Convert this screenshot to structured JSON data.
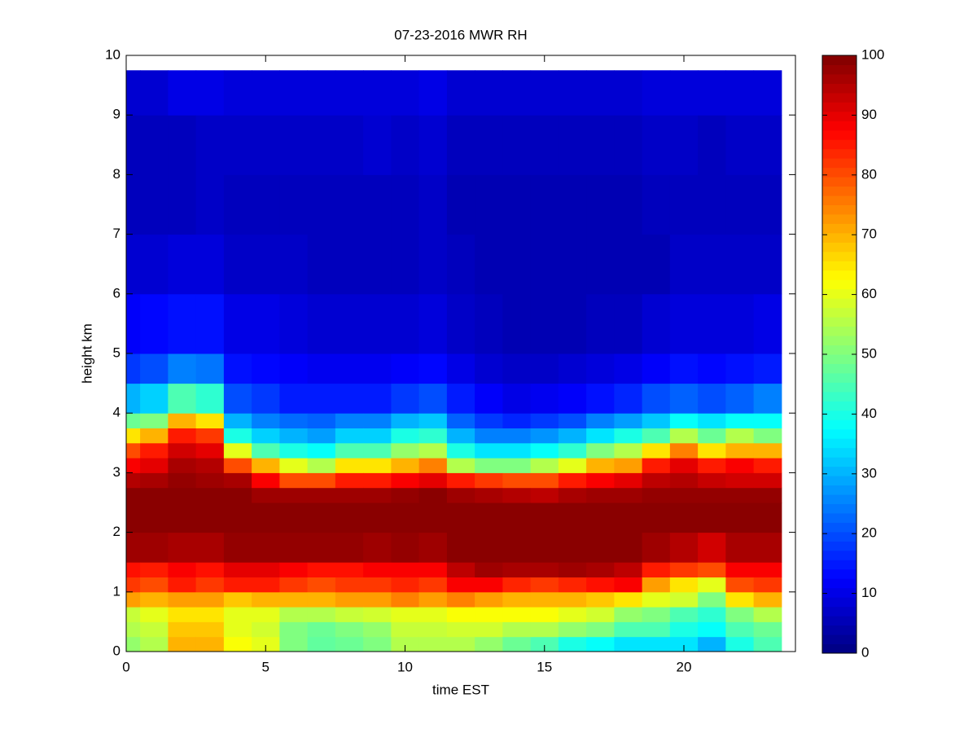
{
  "chart_data": {
    "type": "heatmap",
    "title": "07-23-2016 MWR RH",
    "xlabel": "time EST",
    "ylabel": "height km",
    "xlim": [
      0,
      24
    ],
    "xticks": [
      0,
      5,
      10,
      15,
      20
    ],
    "ylim": [
      0,
      10
    ],
    "yticks": [
      0,
      1,
      2,
      3,
      4,
      5,
      6,
      7,
      8,
      9,
      10
    ],
    "colormap": "jet",
    "clim": [
      0,
      100
    ],
    "cticks": [
      0,
      10,
      20,
      30,
      40,
      50,
      60,
      70,
      80,
      90,
      100
    ],
    "x_bins": [
      0,
      0.5,
      1.5,
      2.5,
      3.5,
      4.5,
      5.5,
      6.5,
      7.5,
      8.5,
      9.5,
      10.5,
      11.5,
      12.5,
      13.5,
      14.5,
      15.5,
      16.5,
      17.5,
      18.5,
      19.5,
      20.5,
      21.5,
      22.5,
      23.5
    ],
    "y_bins": [
      0,
      0.25,
      0.5,
      0.75,
      1,
      1.25,
      1.5,
      2,
      2.5,
      2.75,
      3,
      3.25,
      3.5,
      3.75,
      4,
      4.5,
      5,
      6,
      7,
      8,
      9,
      9.75
    ],
    "z": [
      [
        52,
        55,
        57,
        72,
        82,
        86,
        97,
        99,
        99,
        95,
        88,
        80,
        65,
        48,
        30,
        18,
        12,
        8,
        6,
        6,
        8
      ],
      [
        55,
        57,
        60,
        70,
        80,
        85,
        97,
        99,
        99,
        96,
        90,
        85,
        70,
        50,
        33,
        20,
        13,
        8,
        6,
        6,
        8
      ],
      [
        70,
        68,
        65,
        72,
        85,
        88,
        96,
        99,
        99,
        98,
        96,
        92,
        85,
        70,
        45,
        25,
        14,
        9,
        6,
        6,
        10
      ],
      [
        70,
        68,
        65,
        72,
        82,
        86,
        96,
        99,
        99,
        97,
        95,
        90,
        82,
        65,
        42,
        24,
        14,
        9,
        7,
        7,
        10
      ],
      [
        62,
        60,
        60,
        68,
        85,
        90,
        98,
        99,
        99,
        96,
        80,
        60,
        40,
        30,
        20,
        14,
        10,
        7,
        6,
        7,
        9
      ],
      [
        60,
        58,
        60,
        70,
        85,
        90,
        98,
        99,
        97,
        88,
        70,
        45,
        33,
        25,
        18,
        13,
        10,
        7,
        6,
        7,
        9
      ],
      [
        50,
        50,
        55,
        70,
        82,
        88,
        98,
        99,
        97,
        80,
        60,
        40,
        30,
        23,
        15,
        12,
        9,
        7,
        6,
        7,
        9
      ],
      [
        47,
        48,
        55,
        70,
        80,
        86,
        98,
        99,
        97,
        80,
        55,
        38,
        28,
        22,
        15,
        11,
        8,
        6,
        6,
        7,
        9
      ],
      [
        48,
        50,
        57,
        72,
        82,
        86,
        98,
        99,
        97,
        85,
        65,
        45,
        33,
        25,
        15,
        11,
        8,
        6,
        6,
        7,
        9
      ],
      [
        50,
        52,
        58,
        72,
        82,
        88,
        97,
        99,
        97,
        85,
        65,
        45,
        33,
        25,
        15,
        11,
        8,
        6,
        6,
        8,
        9
      ],
      [
        55,
        57,
        60,
        75,
        84,
        88,
        98,
        99,
        98,
        88,
        70,
        52,
        40,
        30,
        18,
        12,
        8,
        6,
        6,
        7,
        9
      ],
      [
        55,
        57,
        60,
        72,
        82,
        88,
        97,
        99,
        99,
        90,
        75,
        55,
        42,
        32,
        20,
        13,
        9,
        7,
        7,
        8,
        10
      ],
      [
        55,
        58,
        62,
        75,
        88,
        94,
        99,
        99,
        97,
        85,
        55,
        40,
        30,
        22,
        15,
        10,
        7,
        6,
        5,
        6,
        8
      ],
      [
        52,
        58,
        62,
        72,
        88,
        97,
        99,
        99,
        96,
        82,
        50,
        35,
        25,
        18,
        12,
        8,
        6,
        5,
        5,
        6,
        8
      ],
      [
        48,
        55,
        62,
        70,
        84,
        96,
        99,
        99,
        95,
        80,
        50,
        35,
        25,
        16,
        10,
        7,
        5,
        5,
        5,
        6,
        8
      ],
      [
        45,
        55,
        62,
        70,
        82,
        96,
        99,
        99,
        94,
        80,
        55,
        38,
        27,
        18,
        11,
        7,
        5,
        5,
        5,
        6,
        8
      ],
      [
        40,
        52,
        60,
        70,
        84,
        97,
        99,
        99,
        96,
        85,
        60,
        42,
        30,
        20,
        12,
        8,
        5,
        5,
        5,
        6,
        8
      ],
      [
        38,
        50,
        58,
        68,
        86,
        96,
        99,
        99,
        97,
        88,
        70,
        50,
        35,
        25,
        14,
        9,
        6,
        5,
        5,
        6,
        8
      ],
      [
        35,
        45,
        52,
        65,
        88,
        94,
        99,
        99,
        97,
        90,
        72,
        55,
        40,
        28,
        16,
        10,
        6,
        5,
        5,
        6,
        8
      ],
      [
        35,
        45,
        50,
        60,
        72,
        85,
        97,
        99,
        98,
        94,
        85,
        65,
        45,
        32,
        20,
        12,
        8,
        5,
        6,
        7,
        9
      ],
      [
        35,
        40,
        45,
        58,
        65,
        82,
        95,
        99,
        98,
        95,
        90,
        75,
        55,
        38,
        22,
        14,
        9,
        7,
        6,
        7,
        9
      ],
      [
        30,
        38,
        42,
        50,
        60,
        80,
        92,
        99,
        98,
        93,
        85,
        65,
        48,
        35,
        20,
        13,
        9,
        7,
        6,
        6,
        9
      ],
      [
        40,
        45,
        50,
        65,
        80,
        88,
        96,
        99,
        98,
        92,
        88,
        70,
        55,
        38,
        22,
        14,
        9,
        7,
        6,
        7,
        9
      ],
      [
        45,
        48,
        55,
        70,
        82,
        88,
        96,
        99,
        98,
        92,
        85,
        70,
        50,
        38,
        25,
        15,
        10,
        7,
        6,
        7,
        9
      ]
    ]
  }
}
